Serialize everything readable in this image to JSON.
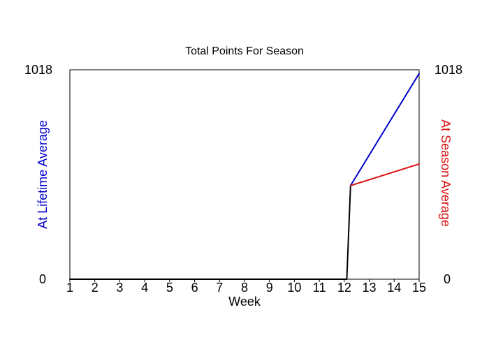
{
  "chart_data": {
    "type": "line",
    "title": "Total Points For Season",
    "xlabel": "Week",
    "ylabel_left": "At Lifetime Average",
    "ylabel_right": "At Season Average",
    "x_ticks": [
      "1",
      "2",
      "3",
      "4",
      "5",
      "6",
      "7",
      "8",
      "9",
      "10",
      "11",
      "12",
      "13",
      "14",
      "15"
    ],
    "xlim": [
      1,
      15
    ],
    "ylim": [
      0,
      1018
    ],
    "y_min_label": "0",
    "y_max_label": "1018",
    "grid": false,
    "colors": {
      "actual": "#000000",
      "lifetime": "#0000cc",
      "season": "#dd1111",
      "left_axis_label": "#0000cc",
      "right_axis_label": "#dd1111"
    },
    "series": [
      {
        "key": "actual",
        "x": [
          1,
          2,
          3,
          4,
          5,
          6,
          7,
          8,
          9,
          10,
          11,
          12,
          12.1,
          12.25
        ],
        "y": [
          0,
          0,
          0,
          0,
          0,
          0,
          0,
          0,
          0,
          0,
          0,
          0,
          0,
          455
        ]
      },
      {
        "key": "lifetime",
        "x": [
          12.25,
          15
        ],
        "y": [
          455,
          1000
        ]
      },
      {
        "key": "season",
        "x": [
          12.25,
          15
        ],
        "y": [
          455,
          560
        ]
      }
    ]
  }
}
